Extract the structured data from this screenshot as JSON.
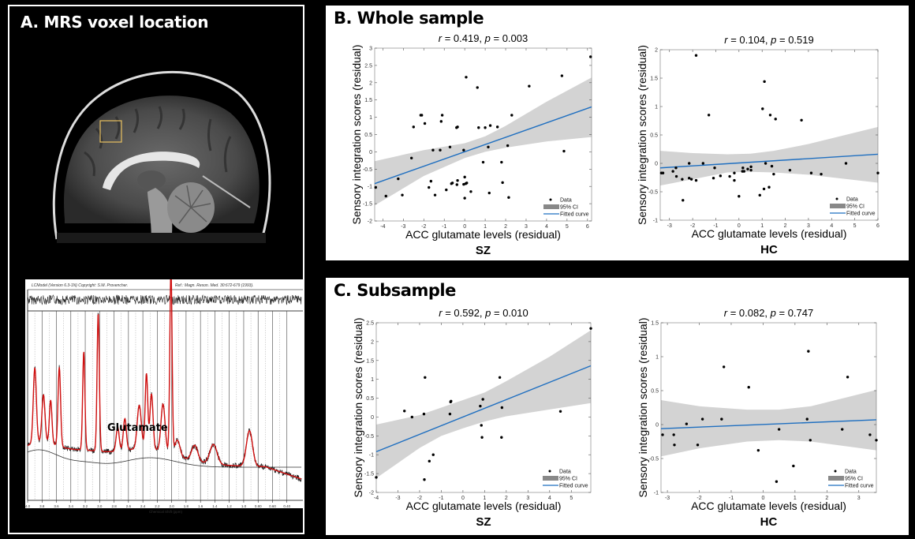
{
  "panel_a": {
    "title": "A. MRS voxel  location",
    "voxel_box_color": "#e8c060",
    "spectrum": {
      "header_left": "LCModel (Version 6.3-1N) Copyright: S.W. Provencher.",
      "header_right": "Ref.: Magn. Reson. Med. 30:672-679 (1993).",
      "annotation": "Glutamate",
      "xlabel": "Chemical Shift (ppm)",
      "xticks": [
        "4.0",
        "3.8",
        "3.6",
        "3.4",
        "3.2",
        "3.0",
        "2.8",
        "2.6",
        "2.4",
        "2.2",
        "2.0",
        "1.8",
        "1.6",
        "1.4",
        "1.2",
        "1.0",
        "0.80",
        "0.60",
        "0.40"
      ],
      "fit_color": "#d01010",
      "data_color": "#222222"
    }
  },
  "panel_b": {
    "title": "B. Whole sample"
  },
  "panel_c": {
    "title": "C. Subsample"
  },
  "legend": {
    "data": "Data",
    "ci": "95% CI",
    "fit": "Fitted curve"
  },
  "colors": {
    "fit_line": "#1f6fc0",
    "ci_band": "#d3d3d3",
    "ci_legend": "#888888",
    "points": "#000000"
  },
  "chart_data": [
    {
      "id": "b-sz",
      "type": "scatter",
      "panel": "B. Whole sample",
      "title": "r = 0.419, p = 0.003",
      "stat_r": "0.419",
      "stat_p": "0.003",
      "group": "SZ",
      "xlabel": "ACC glutamate levels (residual)",
      "ylabel": "Sensory integration scores (residual)",
      "xlim": [
        -4.4,
        6.2
      ],
      "ylim": [
        -2,
        3
      ],
      "xticks": [
        -4,
        -3,
        -2,
        -1,
        0,
        1,
        2,
        3,
        4,
        5,
        6
      ],
      "yticks": [
        -2,
        -1.5,
        -1,
        -0.5,
        0,
        0.5,
        1,
        1.5,
        2,
        2.5,
        3
      ],
      "legend_position": "bottom-right",
      "fit": {
        "x0": -4.4,
        "y0": -0.92,
        "x1": 6.2,
        "y1": 1.3
      },
      "ci_upper": [
        [
          -4.4,
          -0.27
        ],
        [
          -2,
          0.05
        ],
        [
          0,
          0.25
        ],
        [
          1,
          0.45
        ],
        [
          2,
          0.75
        ],
        [
          4,
          1.45
        ],
        [
          6.2,
          2.15
        ]
      ],
      "ci_lower": [
        [
          -4.4,
          -1.55
        ],
        [
          -2,
          -0.7
        ],
        [
          0,
          -0.18
        ],
        [
          1,
          0.0
        ],
        [
          2,
          0.12
        ],
        [
          4,
          0.3
        ],
        [
          6.2,
          0.43
        ]
      ],
      "points": [
        [
          -4.35,
          -1.03
        ],
        [
          -3.85,
          -1.28
        ],
        [
          -3.25,
          -0.78
        ],
        [
          -3.05,
          -1.25
        ],
        [
          -2.6,
          -0.18
        ],
        [
          -2.5,
          0.72
        ],
        [
          -2.15,
          1.06
        ],
        [
          -2.1,
          1.06
        ],
        [
          -1.95,
          0.82
        ],
        [
          -1.75,
          -1.03
        ],
        [
          -1.65,
          -0.85
        ],
        [
          -1.55,
          0.05
        ],
        [
          -1.45,
          -1.25
        ],
        [
          -1.2,
          0.05
        ],
        [
          -1.15,
          0.88
        ],
        [
          -1.1,
          1.06
        ],
        [
          -0.9,
          -1.1
        ],
        [
          -0.72,
          0.14
        ],
        [
          -0.65,
          -0.92
        ],
        [
          -0.6,
          -0.9
        ],
        [
          -0.4,
          0.7
        ],
        [
          -0.38,
          -0.95
        ],
        [
          -0.35,
          0.72
        ],
        [
          -0.35,
          -0.83
        ],
        [
          -0.05,
          0.05
        ],
        [
          -0.05,
          -0.94
        ],
        [
          0.0,
          -0.73
        ],
        [
          0.0,
          -1.34
        ],
        [
          0.05,
          -0.92
        ],
        [
          0.07,
          2.16
        ],
        [
          0.1,
          -0.9
        ],
        [
          0.3,
          -1.15
        ],
        [
          0.62,
          1.86
        ],
        [
          0.68,
          0.7
        ],
        [
          0.9,
          -0.3
        ],
        [
          1.0,
          0.7
        ],
        [
          1.15,
          0.14
        ],
        [
          1.2,
          -1.19
        ],
        [
          1.25,
          0.76
        ],
        [
          1.6,
          0.72
        ],
        [
          1.8,
          -0.3
        ],
        [
          1.85,
          -0.89
        ],
        [
          2.1,
          0.18
        ],
        [
          2.15,
          -1.32
        ],
        [
          2.3,
          1.06
        ],
        [
          3.15,
          1.9
        ],
        [
          4.75,
          2.2
        ],
        [
          4.85,
          0.02
        ],
        [
          6.15,
          2.75
        ]
      ]
    },
    {
      "id": "b-hc",
      "type": "scatter",
      "panel": "B. Whole sample",
      "title": "r = 0.104, p = 0.519",
      "stat_r": "0.104",
      "stat_p": "0.519",
      "group": "HC",
      "xlabel": "ACC glutamate levels (residual)",
      "ylabel": "Sensory integration scores (residual)",
      "xlim": [
        -3.4,
        6
      ],
      "ylim": [
        -1,
        2
      ],
      "xticks": [
        -3,
        -2,
        -1,
        0,
        1,
        2,
        3,
        4,
        5,
        6
      ],
      "yticks": [
        -1,
        -0.5,
        0,
        0.5,
        1,
        1.5,
        2
      ],
      "legend_position": "bottom-right",
      "fit": {
        "x0": -3.4,
        "y0": -0.08,
        "x1": 6,
        "y1": 0.16
      },
      "ci_upper": [
        [
          -3.4,
          0.22
        ],
        [
          -2,
          0.18
        ],
        [
          -0.5,
          0.16
        ],
        [
          0.5,
          0.17
        ],
        [
          1.5,
          0.22
        ],
        [
          3,
          0.34
        ],
        [
          6,
          0.64
        ]
      ],
      "ci_lower": [
        [
          -3.4,
          -0.39
        ],
        [
          -2,
          -0.28
        ],
        [
          -0.5,
          -0.16
        ],
        [
          0.5,
          -0.15
        ],
        [
          1.5,
          -0.16
        ],
        [
          3,
          -0.2
        ],
        [
          6,
          -0.34
        ]
      ],
      "points": [
        [
          -3.35,
          -0.17
        ],
        [
          -3.28,
          -0.17
        ],
        [
          -2.85,
          -0.14
        ],
        [
          -2.72,
          -0.08
        ],
        [
          -2.7,
          -0.23
        ],
        [
          -2.45,
          -0.28
        ],
        [
          -2.42,
          -0.65
        ],
        [
          -2.15,
          0.0
        ],
        [
          -2.15,
          -0.26
        ],
        [
          -2.05,
          -0.28
        ],
        [
          -1.85,
          1.9
        ],
        [
          -1.85,
          -0.3
        ],
        [
          -1.55,
          0.0
        ],
        [
          -1.3,
          0.85
        ],
        [
          -1.1,
          -0.26
        ],
        [
          -1.05,
          -0.08
        ],
        [
          -0.8,
          -0.22
        ],
        [
          -0.4,
          -0.23
        ],
        [
          -0.2,
          -0.17
        ],
        [
          -0.2,
          -0.3
        ],
        [
          0.0,
          -0.58
        ],
        [
          0.15,
          -0.14
        ],
        [
          0.17,
          -0.08
        ],
        [
          0.22,
          -0.14
        ],
        [
          0.38,
          -0.1
        ],
        [
          0.52,
          -0.06
        ],
        [
          0.52,
          -0.12
        ],
        [
          0.9,
          -0.56
        ],
        [
          1.02,
          0.96
        ],
        [
          1.08,
          -0.45
        ],
        [
          1.1,
          1.44
        ],
        [
          1.15,
          0.0
        ],
        [
          1.3,
          -0.42
        ],
        [
          1.35,
          0.85
        ],
        [
          1.42,
          -0.05
        ],
        [
          1.5,
          -0.19
        ],
        [
          1.58,
          0.78
        ],
        [
          2.2,
          -0.12
        ],
        [
          2.7,
          0.76
        ],
        [
          3.12,
          -0.17
        ],
        [
          3.55,
          -0.19
        ],
        [
          4.62,
          0.0
        ],
        [
          6.0,
          -0.17
        ]
      ]
    },
    {
      "id": "c-sz",
      "type": "scatter",
      "panel": "C. Subsample",
      "title": "r = 0.592, p = 0.010",
      "stat_r": "0.592",
      "stat_p": "0.010",
      "group": "SZ",
      "xlabel": "ACC glutamate levels (residual)",
      "ylabel": "Sensory integration scores (residual)",
      "xlim": [
        -4,
        5.9
      ],
      "ylim": [
        -2,
        2.5
      ],
      "xticks": [
        -4,
        -3,
        -2,
        -1,
        0,
        1,
        2,
        3,
        4,
        5
      ],
      "yticks": [
        -2,
        -1.5,
        -1,
        -0.5,
        0,
        0.5,
        1,
        1.5,
        2,
        2.5
      ],
      "legend_position": "bottom-right",
      "fit": {
        "x0": -4,
        "y0": -0.92,
        "x1": 5.9,
        "y1": 1.36
      },
      "ci_upper": [
        [
          -4,
          -0.2
        ],
        [
          -2,
          0.05
        ],
        [
          -1,
          0.25
        ],
        [
          0,
          0.45
        ],
        [
          1,
          0.65
        ],
        [
          2,
          0.95
        ],
        [
          4,
          1.6
        ],
        [
          5.9,
          2.3
        ]
      ],
      "ci_lower": [
        [
          -4,
          -1.62
        ],
        [
          -2,
          -0.82
        ],
        [
          -1,
          -0.5
        ],
        [
          0,
          -0.3
        ],
        [
          1,
          -0.12
        ],
        [
          2,
          0.02
        ],
        [
          4,
          0.2
        ],
        [
          5.9,
          0.37
        ]
      ],
      "points": [
        [
          -4.0,
          -1.6
        ],
        [
          -2.7,
          0.16
        ],
        [
          -2.35,
          0.0
        ],
        [
          -1.8,
          0.08
        ],
        [
          -1.78,
          -1.66
        ],
        [
          -1.75,
          1.05
        ],
        [
          -1.55,
          -1.17
        ],
        [
          -1.37,
          -1.0
        ],
        [
          -0.6,
          0.08
        ],
        [
          -0.57,
          0.4
        ],
        [
          -0.55,
          0.42
        ],
        [
          0.8,
          0.29
        ],
        [
          0.85,
          -0.22
        ],
        [
          0.88,
          -0.54
        ],
        [
          0.92,
          0.47
        ],
        [
          1.7,
          1.05
        ],
        [
          1.78,
          -0.54
        ],
        [
          1.8,
          0.25
        ],
        [
          4.5,
          0.15
        ],
        [
          5.9,
          2.35
        ]
      ]
    },
    {
      "id": "c-hc",
      "type": "scatter",
      "panel": "C. Subsample",
      "title": "r = 0.082, p = 0.747",
      "stat_r": "0.082",
      "stat_p": "0.747",
      "group": "HC",
      "xlabel": "ACC glutamate levels (residual)",
      "ylabel": "Sensory integration scores (residual)",
      "xlim": [
        -3.2,
        3.55
      ],
      "ylim": [
        -1,
        1.5
      ],
      "xticks": [
        -3,
        -2,
        -1,
        0,
        1,
        2,
        3
      ],
      "yticks": [
        -1,
        -0.5,
        0,
        0.5,
        1,
        1.5
      ],
      "legend_position": "bottom-right",
      "fit": {
        "x0": -3.2,
        "y0": -0.06,
        "x1": 3.55,
        "y1": 0.07
      },
      "ci_upper": [
        [
          -3.2,
          0.36
        ],
        [
          -2,
          0.27
        ],
        [
          -0.5,
          0.22
        ],
        [
          0.5,
          0.22
        ],
        [
          1.5,
          0.27
        ],
        [
          3.55,
          0.51
        ]
      ],
      "ci_lower": [
        [
          -3.2,
          -0.47
        ],
        [
          -2,
          -0.35
        ],
        [
          -0.5,
          -0.25
        ],
        [
          0.5,
          -0.23
        ],
        [
          1.5,
          -0.25
        ],
        [
          3.55,
          -0.38
        ]
      ],
      "points": [
        [
          -3.15,
          -0.15
        ],
        [
          -2.8,
          -0.15
        ],
        [
          -2.78,
          -0.3
        ],
        [
          -2.4,
          0.01
        ],
        [
          -2.05,
          -0.3
        ],
        [
          -1.9,
          0.08
        ],
        [
          -1.3,
          0.08
        ],
        [
          -1.23,
          0.85
        ],
        [
          -0.45,
          0.55
        ],
        [
          -0.15,
          -0.38
        ],
        [
          0.42,
          -0.84
        ],
        [
          0.5,
          -0.07
        ],
        [
          0.95,
          -0.61
        ],
        [
          1.38,
          0.08
        ],
        [
          1.42,
          1.08
        ],
        [
          1.48,
          -0.23
        ],
        [
          2.48,
          -0.07
        ],
        [
          2.65,
          0.7
        ],
        [
          3.35,
          -0.15
        ],
        [
          3.55,
          -0.23
        ]
      ]
    }
  ]
}
